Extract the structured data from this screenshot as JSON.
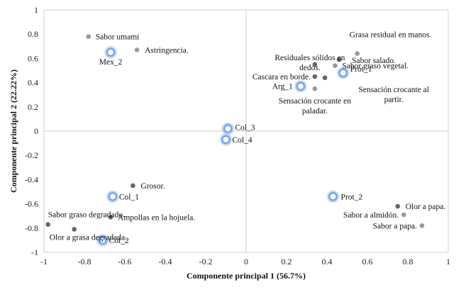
{
  "chart_data": {
    "type": "scatter",
    "title": "",
    "xlabel": "Componente principal  1 (56.7%)",
    "ylabel": "Componente principal  2 (22.22%)",
    "xlim": [
      -1,
      1
    ],
    "ylim": [
      -1,
      1
    ],
    "xticks": [
      -1,
      -0.8,
      -0.6,
      -0.4,
      -0.2,
      0,
      0.2,
      0.4,
      0.6,
      0.8,
      1
    ],
    "yticks": [
      -1,
      -0.8,
      -0.6,
      -0.4,
      -0.2,
      0,
      0.2,
      0.4,
      0.6,
      0.8,
      1
    ],
    "tick_labels": {
      "x": [
        "-1",
        "-0.8",
        "-0.6",
        "-0.4",
        "-0.2",
        "0",
        "0.2",
        "0.4",
        "0.6",
        "0.8",
        "1"
      ],
      "y": [
        "-1",
        "-0.8",
        "-0.6",
        "-0.4",
        "-0.2",
        "0",
        "0.2",
        "0.4",
        "0.6",
        "0.8",
        "1"
      ]
    },
    "grid": false,
    "legend": null,
    "series": [
      {
        "kind": "attribute",
        "points": [
          {
            "x": -0.78,
            "y": 0.78,
            "label": "Sabor umami",
            "color": "#9a9a9a"
          },
          {
            "x": -0.54,
            "y": 0.67,
            "label": "Astringencia.",
            "color": "#9a9a9a"
          },
          {
            "x": 0.55,
            "y": 0.64,
            "label": "Grasa residual en manos.",
            "color": "#9a9a9a"
          },
          {
            "x": 0.46,
            "y": 0.59,
            "label": "Sabor salado.",
            "color": "#666666"
          },
          {
            "x": 0.34,
            "y": 0.55,
            "label": "Residuales sólidos en dedos.",
            "color": "#666666"
          },
          {
            "x": 0.44,
            "y": 0.54,
            "label": "Sabor graso vegetal.",
            "color": "#9a9a9a"
          },
          {
            "x": 0.34,
            "y": 0.45,
            "label": "Cascara en borde.",
            "color": "#666666"
          },
          {
            "x": 0.39,
            "y": 0.44,
            "label": "Sensación crocante al partir.",
            "color": "#666666"
          },
          {
            "x": 0.34,
            "y": 0.35,
            "label": "Sensación crocante en paladar.",
            "color": "#9a9a9a"
          },
          {
            "x": -0.56,
            "y": -0.45,
            "label": "Grosor.",
            "color": "#666666"
          },
          {
            "x": -0.98,
            "y": -0.77,
            "label": "Sabor graso degradado.",
            "color": "#666666"
          },
          {
            "x": -0.85,
            "y": -0.81,
            "label": "Olor a grasa degradada.",
            "color": "#666666"
          },
          {
            "x": -0.67,
            "y": -0.71,
            "label": "Ampollas en la hojuela.",
            "color": "#666666"
          },
          {
            "x": 0.75,
            "y": -0.62,
            "label": "Olor a papa.",
            "color": "#666666"
          },
          {
            "x": 0.78,
            "y": -0.69,
            "label": "Sabor a almidón.",
            "color": "#9a9a9a"
          },
          {
            "x": 0.87,
            "y": -0.78,
            "label": "Sabor a papa.",
            "color": "#9a9a9a"
          }
        ]
      },
      {
        "kind": "sample",
        "points": [
          {
            "x": -0.67,
            "y": 0.65,
            "label": "Mex_2",
            "color": "#5b9bd5"
          },
          {
            "x": 0.27,
            "y": 0.37,
            "label": "Arg_1",
            "color": "#5b9bd5"
          },
          {
            "x": 0.48,
            "y": 0.48,
            "label": "Prot_1",
            "color": "#5b9bd5"
          },
          {
            "x": -0.09,
            "y": 0.02,
            "label": "Col_3",
            "color": "#5b9bd5"
          },
          {
            "x": -0.1,
            "y": -0.07,
            "label": "Col_4",
            "color": "#5b9bd5"
          },
          {
            "x": -0.66,
            "y": -0.54,
            "label": "Col_1",
            "color": "#5b9bd5"
          },
          {
            "x": 0.43,
            "y": -0.54,
            "label": "Prot_2",
            "color": "#5b9bd5"
          },
          {
            "x": -0.71,
            "y": -0.9,
            "label": "Col_2",
            "color": "#5b9bd5"
          }
        ]
      }
    ]
  }
}
